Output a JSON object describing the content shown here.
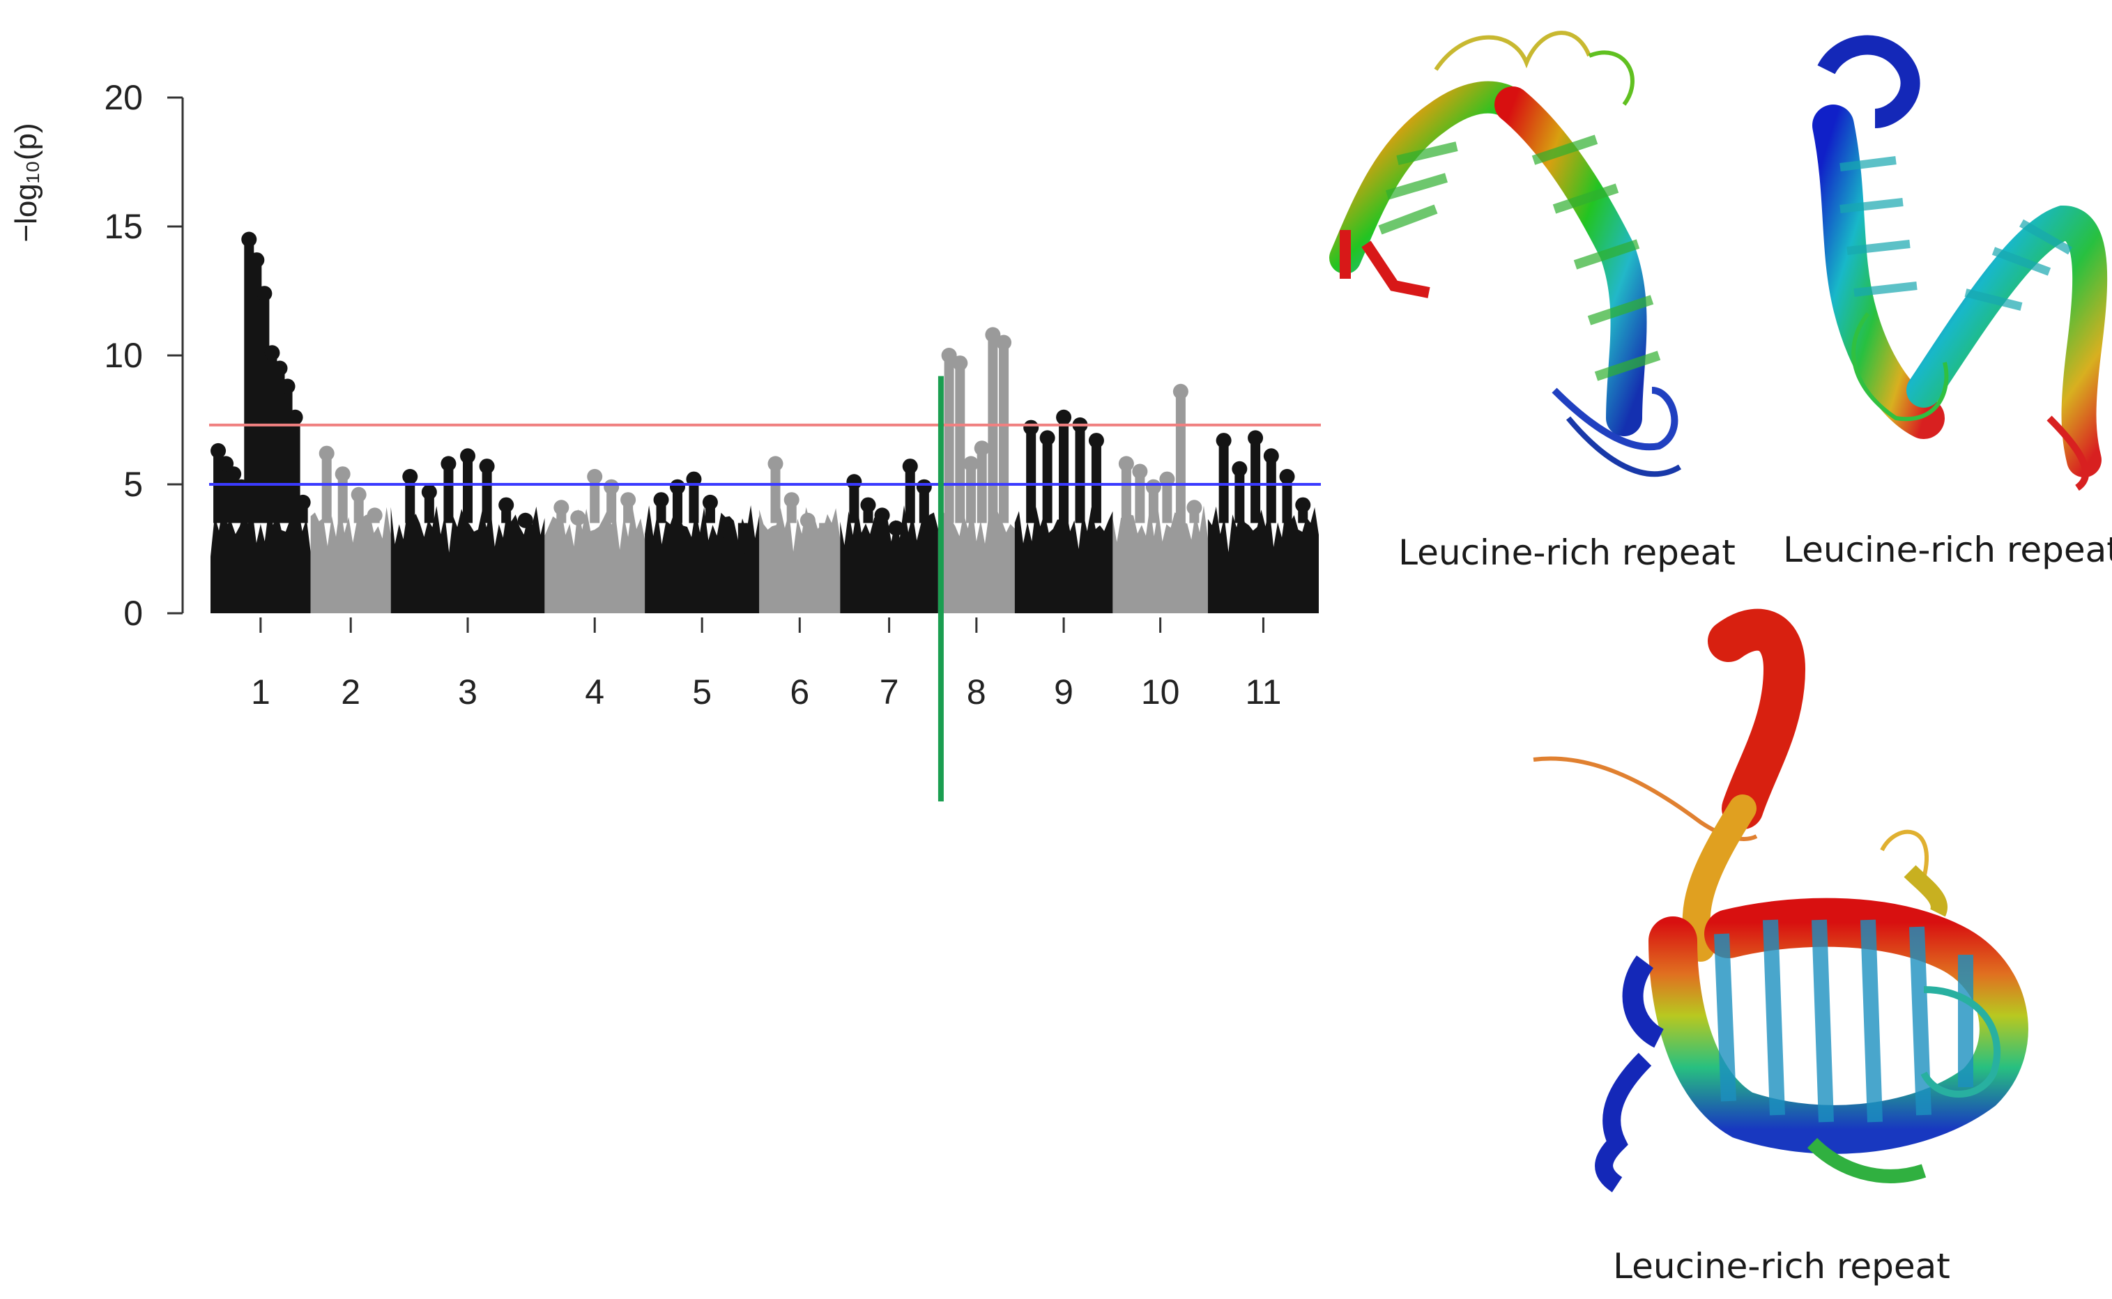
{
  "chart_data": {
    "type": "scatter",
    "ylabel": "−log₁₀(p)",
    "xlabel": "",
    "ylim": [
      0,
      20
    ],
    "yticks": [
      "0",
      "5",
      "10",
      "15",
      "20"
    ],
    "chromosomes": [
      "1",
      "2",
      "3",
      "4",
      "5",
      "6",
      "7",
      "8",
      "9",
      "10",
      "11"
    ],
    "thresholds": [
      {
        "value": 7.3,
        "color": "#f08080"
      },
      {
        "value": 5.0,
        "color": "#3b3bff"
      }
    ],
    "highlight": {
      "chromosome": "8",
      "color": "#1a9e50"
    },
    "colors": {
      "odd": "#141414",
      "even": "#9a9a9a"
    },
    "series": [
      {
        "values": [
          6.3,
          5.8,
          5.4,
          4.9,
          14.5,
          13.7,
          12.4,
          10.1,
          9.5,
          8.8,
          7.6,
          4.3
        ]
      },
      {
        "values": [
          6.2,
          5.4,
          4.6,
          3.8
        ]
      },
      {
        "values": [
          5.3,
          4.7,
          5.8,
          6.1,
          5.7,
          4.2,
          3.6
        ]
      },
      {
        "values": [
          4.1,
          3.7,
          5.3,
          4.9,
          4.4
        ]
      },
      {
        "values": [
          4.4,
          4.9,
          5.2,
          4.3,
          3.2,
          2.6
        ]
      },
      {
        "values": [
          5.8,
          4.4,
          3.6,
          3.1
        ]
      },
      {
        "values": [
          5.1,
          4.2,
          3.8,
          3.3,
          5.7,
          4.9
        ]
      },
      {
        "values": [
          10.0,
          9.7,
          5.8,
          6.4,
          10.8,
          10.5
        ]
      },
      {
        "values": [
          7.2,
          6.8,
          7.6,
          7.3,
          6.7
        ]
      },
      {
        "values": [
          5.8,
          5.5,
          4.9,
          5.2,
          8.6,
          4.1
        ]
      },
      {
        "values": [
          6.7,
          5.6,
          6.8,
          6.1,
          5.3,
          4.2
        ]
      }
    ]
  },
  "structures": [
    {
      "caption": "Leucine-rich repeat"
    },
    {
      "caption": "Leucine-rich repeat"
    },
    {
      "caption": "Leucine-rich repeat"
    }
  ]
}
